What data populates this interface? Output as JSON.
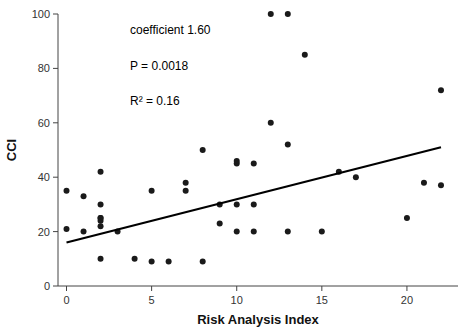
{
  "chart_data": {
    "type": "scatter",
    "x_label": "Risk Analysis Index",
    "y_label": "CCI",
    "xlim": [
      -0.5,
      23
    ],
    "ylim": [
      0,
      100
    ],
    "xticks": [
      0,
      5,
      10,
      15,
      20
    ],
    "yticks": [
      0,
      20,
      40,
      60,
      80,
      100
    ],
    "grid": false,
    "series": [
      {
        "type": "scatter",
        "color": "#1a1a1a",
        "x": [
          0,
          0,
          1,
          1,
          2,
          2,
          2,
          2,
          2,
          2,
          2,
          3,
          4,
          5,
          5,
          6,
          7,
          7,
          8,
          8,
          9,
          9,
          10,
          10,
          10,
          10,
          11,
          11,
          11,
          12,
          12,
          13,
          13,
          13,
          14,
          15,
          16,
          17,
          20,
          21,
          22,
          22
        ],
        "values": [
          21,
          35,
          20,
          33,
          22,
          24,
          25,
          25,
          10,
          42,
          30,
          20,
          10,
          9,
          35,
          9,
          35,
          38,
          50,
          9,
          30,
          23,
          45,
          46,
          30,
          20,
          45,
          30,
          20,
          100,
          60,
          100,
          20,
          52,
          85,
          20,
          42,
          40,
          25,
          38,
          72,
          37
        ]
      },
      {
        "type": "line",
        "color": "#000000",
        "x": [
          0,
          22
        ],
        "values": [
          16,
          51
        ]
      }
    ],
    "annotations": [
      "coefficient 1.60",
      "P = 0.0018",
      "R² = 0.16"
    ]
  }
}
